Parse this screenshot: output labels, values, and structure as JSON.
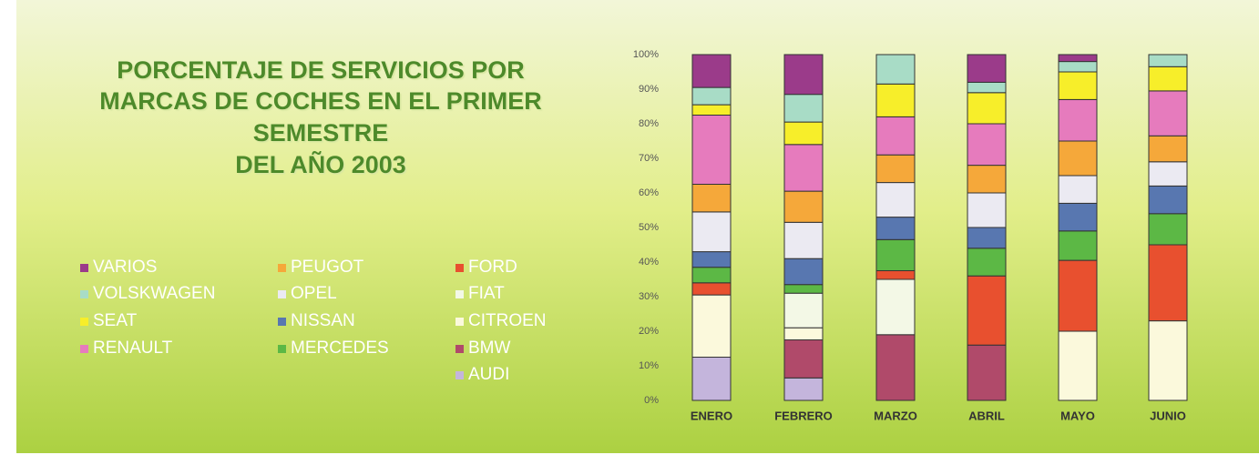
{
  "chart_data": {
    "type": "stacked_bar",
    "title": [
      "PORCENTAJE DE SERVICIOS POR",
      "MARCAS DE COCHES EN EL PRIMER",
      "SEMESTRE",
      "DEL AÑO 2003"
    ],
    "categories": [
      "ENERO",
      "FEBRERO",
      "MARZO",
      "ABRIL",
      "MAYO",
      "JUNIO"
    ],
    "ylim": [
      0,
      100
    ],
    "yticks": [
      {
        "value": 0,
        "label": "0%"
      },
      {
        "value": 10,
        "label": "10%"
      },
      {
        "value": 20,
        "label": "20%"
      },
      {
        "value": 30,
        "label": "30%"
      },
      {
        "value": 40,
        "label": "40%"
      },
      {
        "value": 50,
        "label": "50%"
      },
      {
        "value": 60,
        "label": "60%"
      },
      {
        "value": 70,
        "label": "70%"
      },
      {
        "value": 80,
        "label": "80%"
      },
      {
        "value": 90,
        "label": "90%"
      },
      {
        "value": 100,
        "label": "100%"
      }
    ],
    "series": [
      {
        "name": "VARIOS",
        "color": "#9b3b8a",
        "values": [
          9.5,
          11.5,
          0,
          8,
          2,
          0
        ]
      },
      {
        "name": "VOLSKWAGEN",
        "color": "#a8dcc6",
        "values": [
          5,
          8,
          8.5,
          3,
          3,
          3.5
        ]
      },
      {
        "name": "SEAT",
        "color": "#f7ee2a",
        "values": [
          3,
          6.5,
          9.5,
          9,
          8,
          7
        ]
      },
      {
        "name": "RENAULT",
        "color": "#e67bbd",
        "values": [
          20,
          13.5,
          11,
          12,
          12,
          13
        ]
      },
      {
        "name": "PEUGOT",
        "color": "#f5a83a",
        "values": [
          8,
          9,
          8,
          8,
          10,
          7.5
        ]
      },
      {
        "name": "OPEL",
        "color": "#ebeaf2",
        "values": [
          11.5,
          10.5,
          10,
          10,
          8,
          7
        ]
      },
      {
        "name": "NISSAN",
        "color": "#5877b0",
        "values": [
          4.5,
          7.5,
          6.5,
          6,
          8,
          8
        ]
      },
      {
        "name": "MERCEDES",
        "color": "#5cb845",
        "values": [
          4.5,
          2.5,
          9,
          8,
          8.5,
          9
        ]
      },
      {
        "name": "FORD",
        "color": "#e8502f",
        "values": [
          3.5,
          0,
          2.5,
          20,
          20.5,
          22
        ]
      },
      {
        "name": "FIAT",
        "color": "#f3f8e6",
        "values": [
          0,
          10,
          16,
          0,
          0,
          0
        ]
      },
      {
        "name": "CITROEN",
        "color": "#fbf9dc",
        "values": [
          18,
          3.5,
          0,
          0,
          20,
          23
        ]
      },
      {
        "name": "BMW",
        "color": "#b04a6a",
        "values": [
          0,
          11,
          19,
          16,
          0,
          0
        ]
      },
      {
        "name": "AUDI",
        "color": "#c4b5dc",
        "values": [
          12.5,
          6.5,
          0,
          0,
          0,
          0
        ]
      }
    ]
  }
}
